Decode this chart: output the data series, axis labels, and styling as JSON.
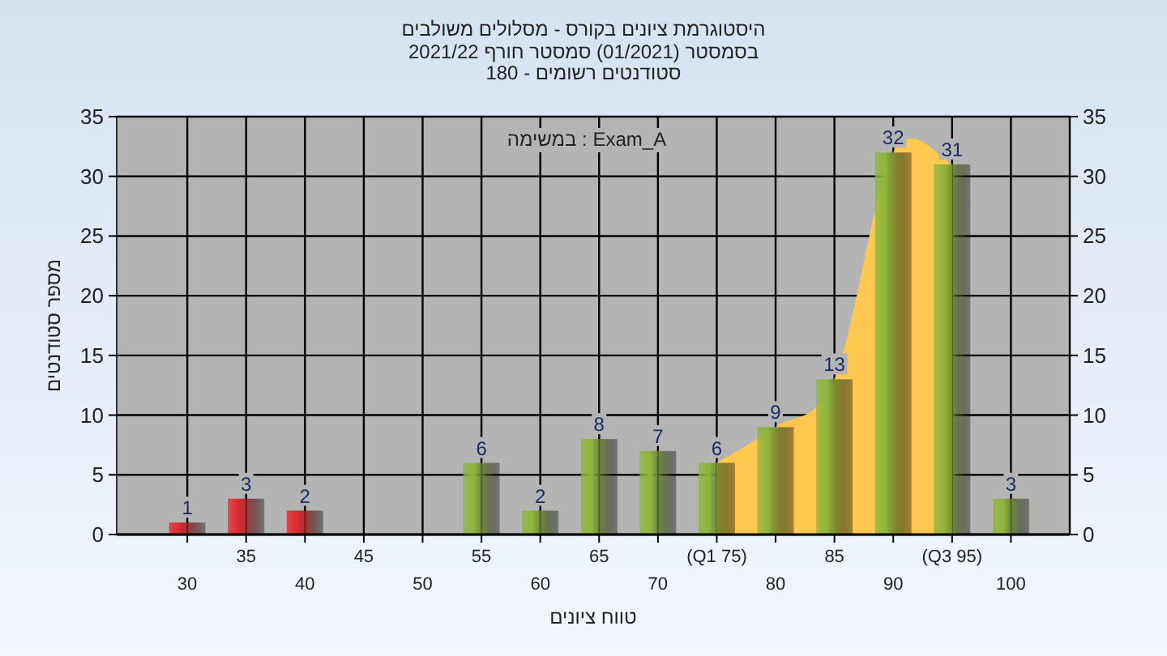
{
  "chart_data": {
    "type": "bar",
    "title": "היסטוגרמת ציונים בקורס - מסלולים משולבים",
    "subtitle": "בסמסטר  (01/2021)  סמסטר חורף 2021/22\nסטודנטים רשומים - 180",
    "xlabel": "טווח ציונים",
    "ylabel": "מספר סטודנטים",
    "annotations": [
      "במשימה : Exam_A"
    ],
    "categories": [
      "30",
      "35",
      "40",
      "45",
      "50",
      "55",
      "60",
      "65",
      "70",
      "(Q1 75)",
      "80",
      "85",
      "90",
      "(Q3 95)",
      "100"
    ],
    "series": [
      {
        "type": "area",
        "color": "#ffc850",
        "values": [
          null,
          null,
          null,
          null,
          null,
          null,
          null,
          null,
          null,
          6,
          9,
          13,
          32,
          31,
          null
        ]
      },
      {
        "type": "bar",
        "colors": [
          "#e0282c",
          "#e0282c",
          "#e0282c",
          "#8fb43a",
          "#8fb43a",
          "#8fb43a",
          "#8fb43a",
          "#8fb43a",
          "#8fb43a",
          "#8fb43a",
          "#8fb43a",
          "#8fb43a",
          "#8fb43a",
          "#8fb43a",
          "#8fb43a"
        ],
        "values": [
          1,
          3,
          2,
          0,
          0,
          6,
          2,
          8,
          7,
          6,
          9,
          13,
          32,
          31,
          3
        ],
        "value_labels": [
          "1",
          "3",
          "2",
          null,
          null,
          "6",
          "2",
          "8",
          "7",
          "6",
          "9",
          "13",
          "32",
          "31",
          "3"
        ]
      }
    ],
    "ylim": [
      0,
      35
    ],
    "yticks": [
      0,
      5,
      10,
      15,
      20,
      25,
      30,
      35
    ],
    "y2lim": [
      0,
      35
    ],
    "y2ticks": [
      0,
      5,
      10,
      15,
      20,
      25,
      30,
      35
    ],
    "grid": true
  }
}
